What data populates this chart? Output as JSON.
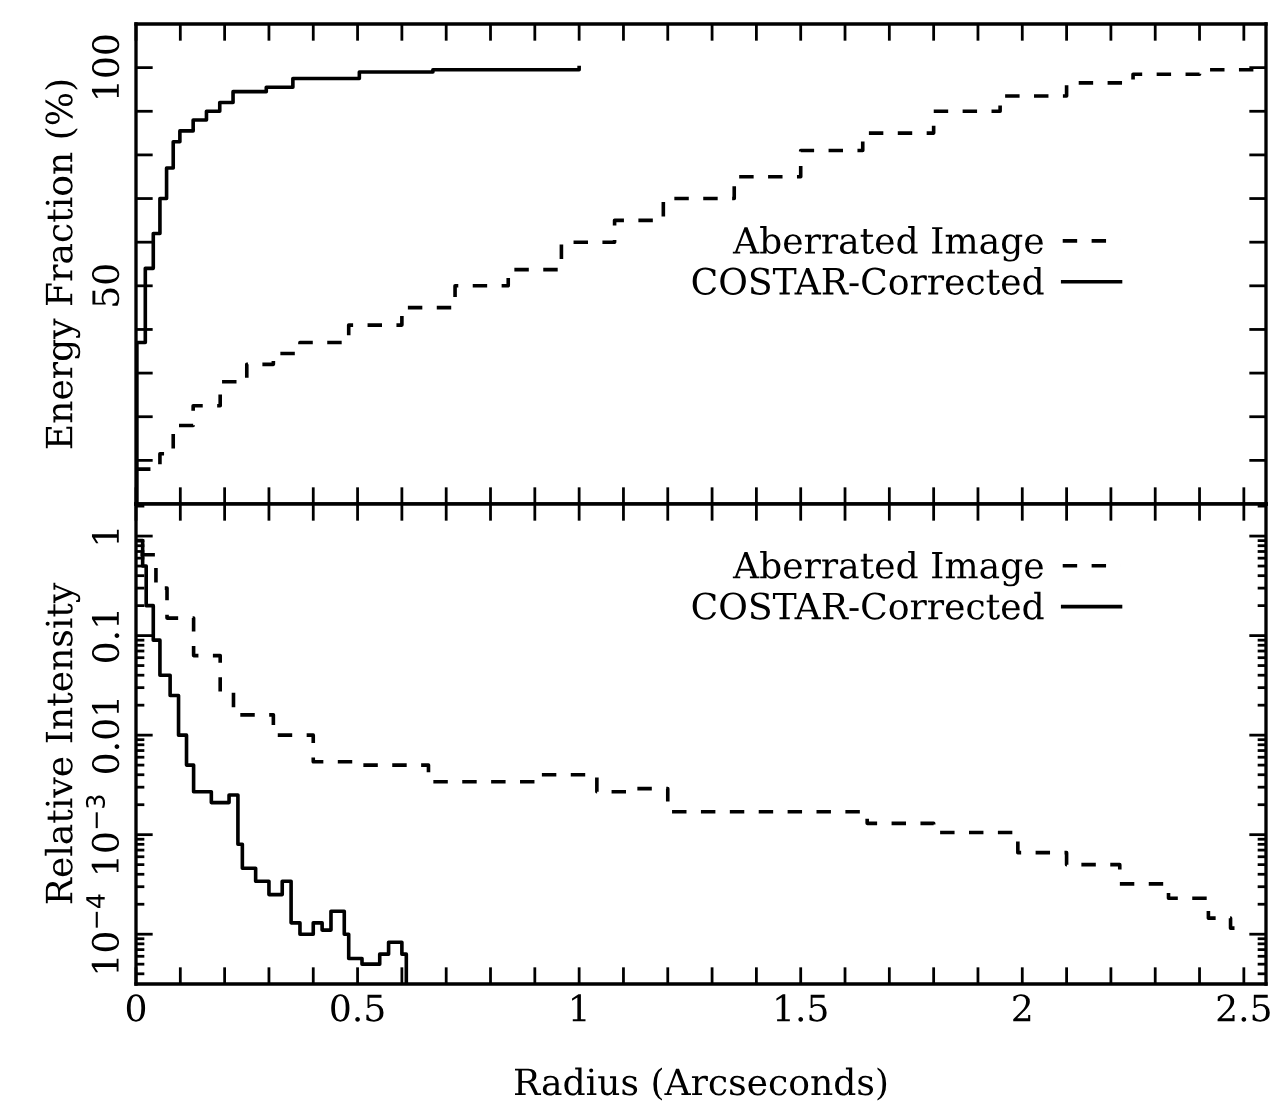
{
  "chart_data": [
    {
      "type": "step",
      "ylabel": "Energy Fraction (%)",
      "xlim": [
        0,
        2.55
      ],
      "ylim": [
        0,
        110
      ],
      "xticks": [
        0,
        {
          "value": 0.1,
          "label": null
        },
        {
          "value": 0.2,
          "label": null
        },
        {
          "value": 0.3,
          "label": null
        },
        {
          "value": 0.4,
          "label": null
        },
        0.5,
        {
          "value": 0.6,
          "label": null
        },
        {
          "value": 0.7,
          "label": null
        },
        {
          "value": 0.8,
          "label": null
        },
        {
          "value": 0.9,
          "label": null
        },
        1,
        {
          "value": 1.1,
          "label": null
        },
        {
          "value": 1.2,
          "label": null
        },
        {
          "value": 1.3,
          "label": null
        },
        {
          "value": 1.4,
          "label": null
        },
        1.5,
        {
          "value": 1.6,
          "label": null
        },
        {
          "value": 1.7,
          "label": null
        },
        {
          "value": 1.8,
          "label": null
        },
        {
          "value": 1.9,
          "label": null
        },
        2,
        {
          "value": 2.1,
          "label": null
        },
        {
          "value": 2.2,
          "label": null
        },
        {
          "value": 2.3,
          "label": null
        },
        {
          "value": 2.4,
          "label": null
        },
        2.5
      ],
      "yticks": [
        {
          "value": 10,
          "label": null
        },
        {
          "value": 20,
          "label": null
        },
        {
          "value": 30,
          "label": null
        },
        {
          "value": 40,
          "label": null
        },
        50,
        {
          "value": 60,
          "label": null
        },
        {
          "value": 70,
          "label": null
        },
        {
          "value": 80,
          "label": null
        },
        {
          "value": 90,
          "label": null
        },
        100
      ],
      "tick_labels": "y",
      "legend": "right",
      "series": [
        {
          "name": "Aberrated Image",
          "color": "#000000",
          "line_style": "dashed",
          "x": [
            0,
            0.03,
            0.054,
            0.084,
            0.129,
            0.19,
            0.25,
            0.31,
            0.37,
            0.48,
            0.6,
            0.72,
            0.84,
            0.96,
            1.08,
            1.19,
            1.35,
            1.5,
            1.64,
            1.8,
            1.95,
            2.1,
            2.25,
            2.4,
            2.55
          ],
          "values": [
            8,
            8,
            11.5,
            18,
            22.5,
            28,
            32,
            34.5,
            37,
            41,
            45,
            50,
            53.7,
            60,
            65,
            70,
            75,
            81,
            85,
            90,
            93.5,
            96.5,
            98.5,
            99.5,
            100
          ]
        },
        {
          "name": "COSTAR-Corrected",
          "color": "#000000",
          "line_style": "solid",
          "x": [
            0,
            0.002,
            0.021,
            0.039,
            0.054,
            0.069,
            0.084,
            0.099,
            0.129,
            0.159,
            0.189,
            0.219,
            0.294,
            0.354,
            0.504,
            0.67,
            1.0
          ],
          "values": [
            0,
            37,
            54,
            62,
            70,
            77,
            83,
            85.5,
            88,
            90,
            92,
            94.5,
            95.5,
            97.5,
            99,
            99.5,
            100
          ]
        }
      ]
    },
    {
      "type": "step",
      "ylabel": "Relative Intensity",
      "xlabel": "Radius (Arcseconds)",
      "log": "y",
      "xlim": [
        0,
        2.55
      ],
      "ylim": [
        3.16e-05,
        2.1
      ],
      "xticks": [
        0,
        {
          "value": 0.1,
          "label": null
        },
        {
          "value": 0.2,
          "label": null
        },
        {
          "value": 0.3,
          "label": null
        },
        {
          "value": 0.4,
          "label": null
        },
        0.5,
        {
          "value": 0.6,
          "label": null
        },
        {
          "value": 0.7,
          "label": null
        },
        {
          "value": 0.8,
          "label": null
        },
        {
          "value": 0.9,
          "label": null
        },
        1,
        {
          "value": 1.1,
          "label": null
        },
        {
          "value": 1.2,
          "label": null
        },
        {
          "value": 1.3,
          "label": null
        },
        {
          "value": 1.4,
          "label": null
        },
        1.5,
        {
          "value": 1.6,
          "label": null
        },
        {
          "value": 1.7,
          "label": null
        },
        {
          "value": 1.8,
          "label": null
        },
        {
          "value": 1.9,
          "label": null
        },
        2,
        {
          "value": 2.1,
          "label": null
        },
        {
          "value": 2.2,
          "label": null
        },
        {
          "value": 2.3,
          "label": null
        },
        {
          "value": 2.4,
          "label": null
        },
        2.5
      ],
      "yticks": [
        {
          "value": 0.0001,
          "label": "10$^{−4}$"
        },
        {
          "value": 0.001,
          "label": "10$^{−3}$"
        },
        0.01,
        0.1,
        1
      ],
      "legend": "top right",
      "series": [
        {
          "name": "Aberrated Image",
          "color": "#000000",
          "line_style": "dashed",
          "x": [
            0.01,
            0.03,
            0.045,
            0.07,
            0.13,
            0.19,
            0.22,
            0.31,
            0.4,
            0.49,
            0.66,
            0.84,
            0.91,
            1.04,
            1.12,
            1.2,
            1.5,
            1.65,
            1.8,
            1.88,
            1.99,
            2.1,
            2.22,
            2.33,
            2.42,
            2.47,
            2.5
          ],
          "values": [
            0.65,
            0.65,
            0.3,
            0.15,
            0.063,
            0.027,
            0.016,
            0.01,
            0.0054,
            0.005,
            0.0034,
            0.0034,
            0.004,
            0.0027,
            0.0029,
            0.0017,
            0.0017,
            0.0013,
            0.00105,
            0.00105,
            0.00066,
            0.0005,
            0.00032,
            0.00023,
            0.000145,
            0.000115,
            0.000115
          ]
        },
        {
          "name": "COSTAR-Corrected",
          "color": "#000000",
          "line_style": "solid",
          "x": [
            0,
            0.015,
            0.023,
            0.039,
            0.054,
            0.077,
            0.096,
            0.114,
            0.13,
            0.17,
            0.21,
            0.23,
            0.24,
            0.27,
            0.3,
            0.33,
            0.35,
            0.37,
            0.4,
            0.42,
            0.44,
            0.47,
            0.48,
            0.51,
            0.55,
            0.57,
            0.6,
            0.61
          ],
          "values": [
            0.9,
            0.5,
            0.2,
            0.09,
            0.04,
            0.025,
            0.01,
            0.005,
            0.0027,
            0.0021,
            0.0025,
            0.0008,
            0.00046,
            0.00034,
            0.00025,
            0.00034,
            0.00013,
            0.0001,
            0.00013,
            0.00011,
            0.00017,
            0.0001,
            5.7e-05,
            5e-05,
            6.3e-05,
            8.3e-05,
            6.3e-05,
            3.2e-05
          ]
        }
      ]
    }
  ]
}
